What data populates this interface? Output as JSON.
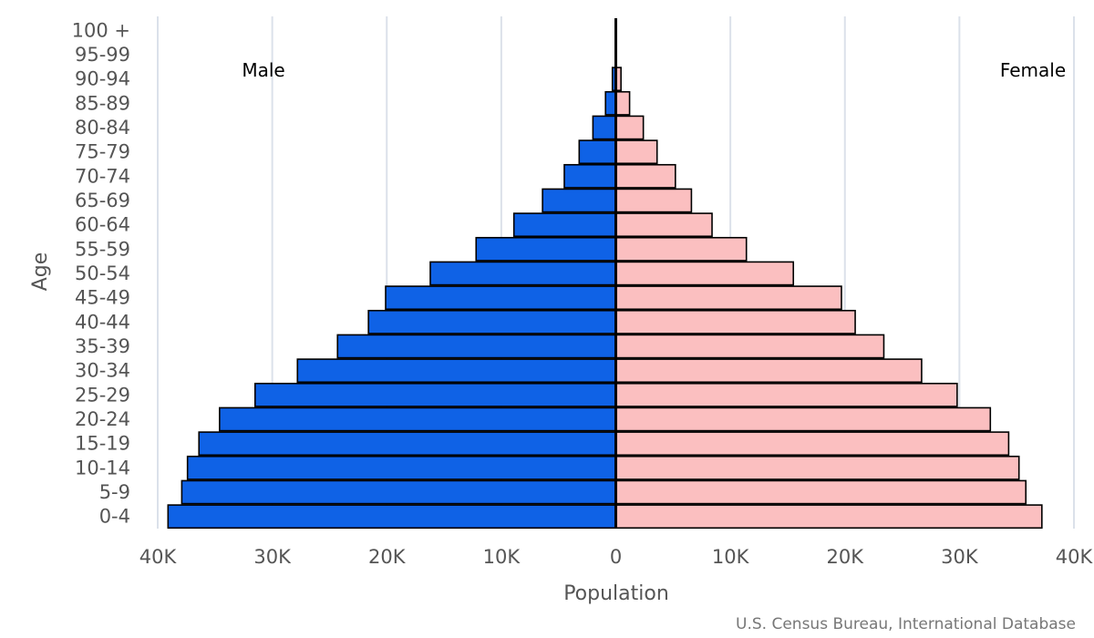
{
  "chart_data": {
    "type": "bar",
    "orientation": "horizontal-population-pyramid",
    "xlabel": "Population",
    "ylabel": "Age",
    "xlim": [
      -40000,
      40000
    ],
    "x_ticks": [
      -40000,
      -30000,
      -20000,
      -10000,
      0,
      10000,
      20000,
      30000,
      40000
    ],
    "x_tick_labels": [
      "40K",
      "30K",
      "20K",
      "10K",
      "0",
      "10K",
      "20K",
      "30K",
      "40K"
    ],
    "grid": true,
    "categories": [
      "100 +",
      "95-99",
      "90-94",
      "85-89",
      "80-84",
      "75-79",
      "70-74",
      "65-69",
      "60-64",
      "55-59",
      "50-54",
      "45-49",
      "40-44",
      "35-39",
      "30-34",
      "25-29",
      "20-24",
      "15-19",
      "10-14",
      "5-9",
      "0-4"
    ],
    "series": [
      {
        "name": "Male",
        "color": "#0f62e6",
        "values": [
          0,
          50,
          300,
          900,
          2000,
          3200,
          4500,
          6400,
          8900,
          12200,
          16200,
          20100,
          21600,
          24300,
          27800,
          31500,
          34600,
          36400,
          37400,
          37900,
          39100
        ]
      },
      {
        "name": "Female",
        "color": "#fbbfc0",
        "values": [
          0,
          50,
          450,
          1200,
          2400,
          3600,
          5200,
          6600,
          8400,
          11400,
          15500,
          19700,
          20900,
          23400,
          26700,
          29800,
          32700,
          34300,
          35200,
          35800,
          37200
        ]
      }
    ],
    "source": "U.S. Census Bureau, International Database"
  }
}
